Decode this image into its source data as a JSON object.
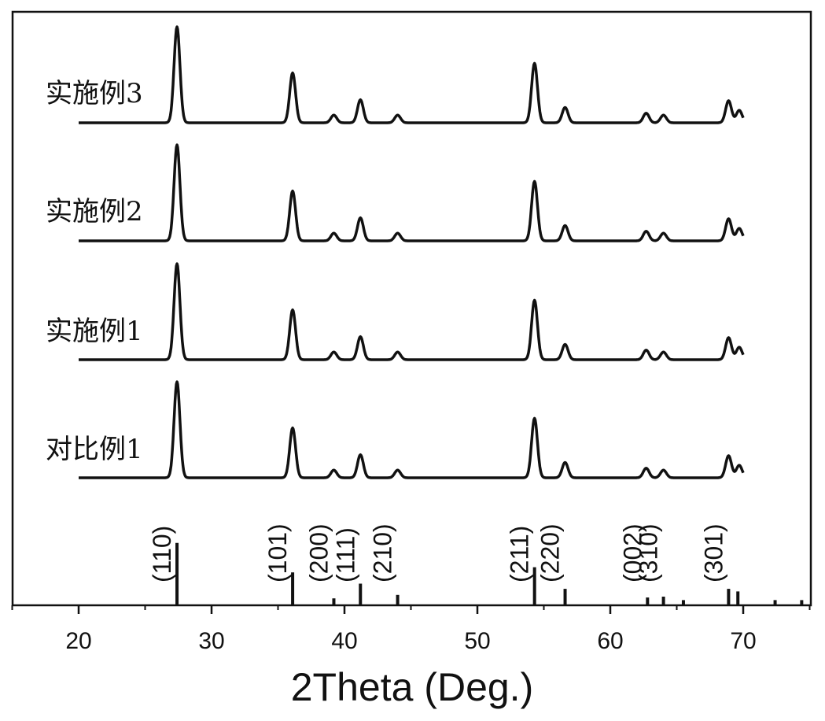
{
  "chart_data": {
    "type": "line",
    "xlabel": "2Theta (Deg.)",
    "ylabel": "",
    "xlim": [
      15,
      75
    ],
    "x_ticks": [
      20,
      30,
      40,
      50,
      60,
      70
    ],
    "grid": false,
    "legend": "labels placed left of each trace",
    "peaks_2theta": [
      27.4,
      36.1,
      39.2,
      41.2,
      44.0,
      54.3,
      56.6,
      62.7,
      64.0,
      68.9,
      69.7
    ],
    "peak_intensity_relative": [
      1.0,
      0.52,
      0.08,
      0.24,
      0.08,
      0.62,
      0.16,
      0.1,
      0.08,
      0.23,
      0.13
    ],
    "peak_width_2theta": 0.22,
    "x_start": 20,
    "x_end": 70,
    "series": [
      {
        "name": "对比例1"
      },
      {
        "name": "实施例1"
      },
      {
        "name": "实施例2"
      },
      {
        "name": "实施例3"
      }
    ],
    "reference": {
      "label_peaks": [
        {
          "label": "(110)",
          "x": 27.4,
          "intensity": 0.72
        },
        {
          "label": "(101)",
          "x": 36.1,
          "intensity": 0.38
        },
        {
          "label": "(200)",
          "x": 39.2,
          "intensity": 0.08
        },
        {
          "label": "(111)",
          "x": 41.2,
          "intensity": 0.25
        },
        {
          "label": "(210)",
          "x": 44.0,
          "intensity": 0.12
        },
        {
          "label": "(211)",
          "x": 54.3,
          "intensity": 0.44
        },
        {
          "label": "(220)",
          "x": 56.6,
          "intensity": 0.19
        },
        {
          "label": "(002)",
          "x": 62.8,
          "intensity": 0.09
        },
        {
          "label": "(310)",
          "x": 64.0,
          "intensity": 0.1
        },
        {
          "label": "(301)",
          "x": 68.9,
          "intensity": 0.19
        }
      ],
      "other_peaks": [
        {
          "x": 69.6,
          "intensity": 0.16
        },
        {
          "x": 65.5,
          "intensity": 0.06
        },
        {
          "x": 72.4,
          "intensity": 0.06
        },
        {
          "x": 74.4,
          "intensity": 0.06
        }
      ]
    }
  }
}
